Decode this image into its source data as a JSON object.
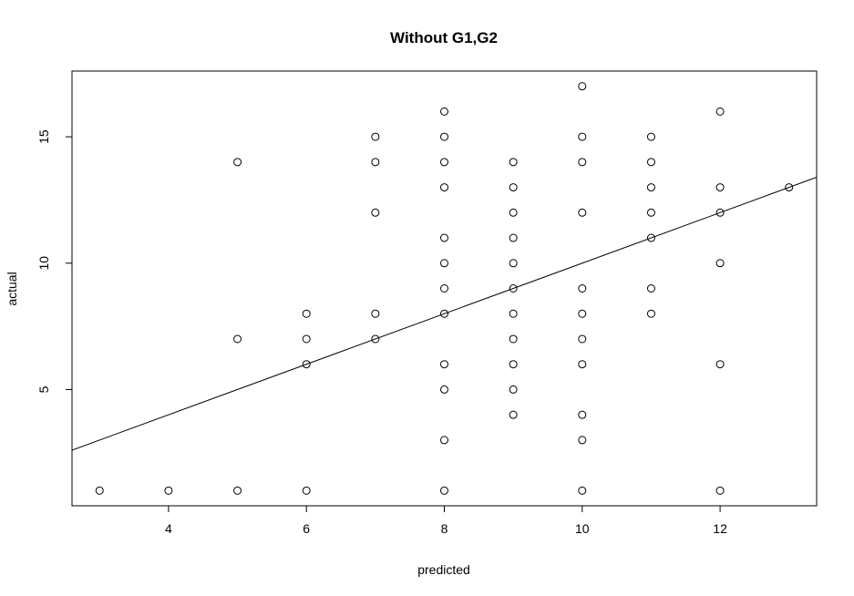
{
  "chart_data": {
    "type": "scatter",
    "title": "Without G1,G2",
    "xlabel": "predicted",
    "ylabel": "actual",
    "xlim": [
      2.6,
      13.4
    ],
    "ylim": [
      0.4,
      17.6
    ],
    "xticks": [
      4,
      6,
      8,
      10,
      12
    ],
    "yticks": [
      5,
      10,
      15
    ],
    "grid": false,
    "legend": "none",
    "points": [
      {
        "x": 3,
        "y": 1
      },
      {
        "x": 4,
        "y": 1
      },
      {
        "x": 5,
        "y": 1
      },
      {
        "x": 5,
        "y": 7
      },
      {
        "x": 5,
        "y": 14
      },
      {
        "x": 6,
        "y": 1
      },
      {
        "x": 6,
        "y": 6
      },
      {
        "x": 6,
        "y": 7
      },
      {
        "x": 6,
        "y": 8
      },
      {
        "x": 7,
        "y": 7
      },
      {
        "x": 7,
        "y": 8
      },
      {
        "x": 7,
        "y": 12
      },
      {
        "x": 7,
        "y": 14
      },
      {
        "x": 7,
        "y": 15
      },
      {
        "x": 8,
        "y": 1
      },
      {
        "x": 8,
        "y": 3
      },
      {
        "x": 8,
        "y": 5
      },
      {
        "x": 8,
        "y": 6
      },
      {
        "x": 8,
        "y": 8
      },
      {
        "x": 8,
        "y": 9
      },
      {
        "x": 8,
        "y": 10
      },
      {
        "x": 8,
        "y": 11
      },
      {
        "x": 8,
        "y": 13
      },
      {
        "x": 8,
        "y": 14
      },
      {
        "x": 8,
        "y": 15
      },
      {
        "x": 8,
        "y": 16
      },
      {
        "x": 9,
        "y": 4
      },
      {
        "x": 9,
        "y": 5
      },
      {
        "x": 9,
        "y": 6
      },
      {
        "x": 9,
        "y": 7
      },
      {
        "x": 9,
        "y": 8
      },
      {
        "x": 9,
        "y": 9
      },
      {
        "x": 9,
        "y": 10
      },
      {
        "x": 9,
        "y": 11
      },
      {
        "x": 9,
        "y": 12
      },
      {
        "x": 9,
        "y": 13
      },
      {
        "x": 9,
        "y": 14
      },
      {
        "x": 10,
        "y": 1
      },
      {
        "x": 10,
        "y": 3
      },
      {
        "x": 10,
        "y": 4
      },
      {
        "x": 10,
        "y": 6
      },
      {
        "x": 10,
        "y": 7
      },
      {
        "x": 10,
        "y": 8
      },
      {
        "x": 10,
        "y": 9
      },
      {
        "x": 10,
        "y": 12
      },
      {
        "x": 10,
        "y": 14
      },
      {
        "x": 10,
        "y": 15
      },
      {
        "x": 10,
        "y": 17
      },
      {
        "x": 11,
        "y": 8
      },
      {
        "x": 11,
        "y": 9
      },
      {
        "x": 11,
        "y": 11
      },
      {
        "x": 11,
        "y": 12
      },
      {
        "x": 11,
        "y": 13
      },
      {
        "x": 11,
        "y": 14
      },
      {
        "x": 11,
        "y": 15
      },
      {
        "x": 12,
        "y": 1
      },
      {
        "x": 12,
        "y": 6
      },
      {
        "x": 12,
        "y": 10
      },
      {
        "x": 12,
        "y": 12
      },
      {
        "x": 12,
        "y": 13
      },
      {
        "x": 12,
        "y": 16
      },
      {
        "x": 13,
        "y": 13
      }
    ],
    "reference_line": {
      "intercept": 0,
      "slope": 1
    }
  }
}
